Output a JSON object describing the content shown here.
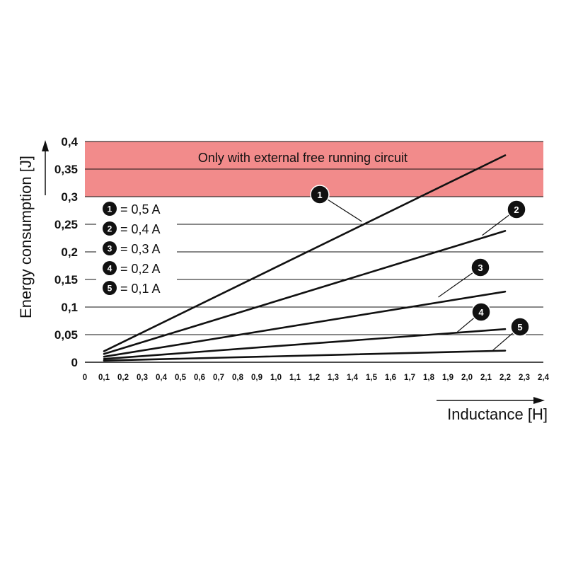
{
  "chart_data": {
    "type": "line",
    "ylabel": "Energy consumption [J]",
    "xlabel": "Inductance [H]",
    "xlim": [
      0,
      2.4
    ],
    "ylim": [
      0,
      0.4
    ],
    "x_ticks": [
      "0",
      "0,1",
      "0,2",
      "0,3",
      "0,4",
      "0,5",
      "0,6",
      "0,7",
      "0,8",
      "0,9",
      "1,0",
      "1,1",
      "1,2",
      "1,3",
      "1,4",
      "1,5",
      "1,6",
      "1,7",
      "1,8",
      "1,9",
      "2,0",
      "2,1",
      "2,2",
      "2,3",
      "2,4"
    ],
    "y_ticks": [
      "0",
      "0,05",
      "0,1",
      "0,15",
      "0,2",
      "0,25",
      "0,3",
      "0,35",
      "0,4"
    ],
    "grid": "horizontal",
    "band": {
      "from": 0.3,
      "to": 0.4,
      "label": "Only with external free running circuit",
      "color": "#f28b8b"
    },
    "legend": {
      "position": "left",
      "entries": [
        {
          "marker": "1",
          "label": "= 0,5 A"
        },
        {
          "marker": "2",
          "label": "= 0,4 A"
        },
        {
          "marker": "3",
          "label": "= 0,3 A"
        },
        {
          "marker": "4",
          "label": "= 0,2 A"
        },
        {
          "marker": "5",
          "label": "= 0,1 A"
        }
      ]
    },
    "series": [
      {
        "marker": "1",
        "x": [
          0.1,
          2.2
        ],
        "y": [
          0.02,
          0.375
        ],
        "label_point": [
          1.45,
          0.255
        ]
      },
      {
        "marker": "2",
        "x": [
          0.1,
          2.2
        ],
        "y": [
          0.015,
          0.238
        ],
        "label_point": [
          2.08,
          0.23
        ]
      },
      {
        "marker": "3",
        "x": [
          0.1,
          2.2
        ],
        "y": [
          0.01,
          0.128
        ],
        "label_point": [
          1.85,
          0.118
        ]
      },
      {
        "marker": "4",
        "x": [
          0.1,
          2.2
        ],
        "y": [
          0.006,
          0.06
        ],
        "label_point": [
          1.95,
          0.055
        ]
      },
      {
        "marker": "5",
        "x": [
          0.1,
          2.2
        ],
        "y": [
          0.003,
          0.021
        ],
        "label_point": [
          2.13,
          0.02
        ]
      }
    ]
  }
}
